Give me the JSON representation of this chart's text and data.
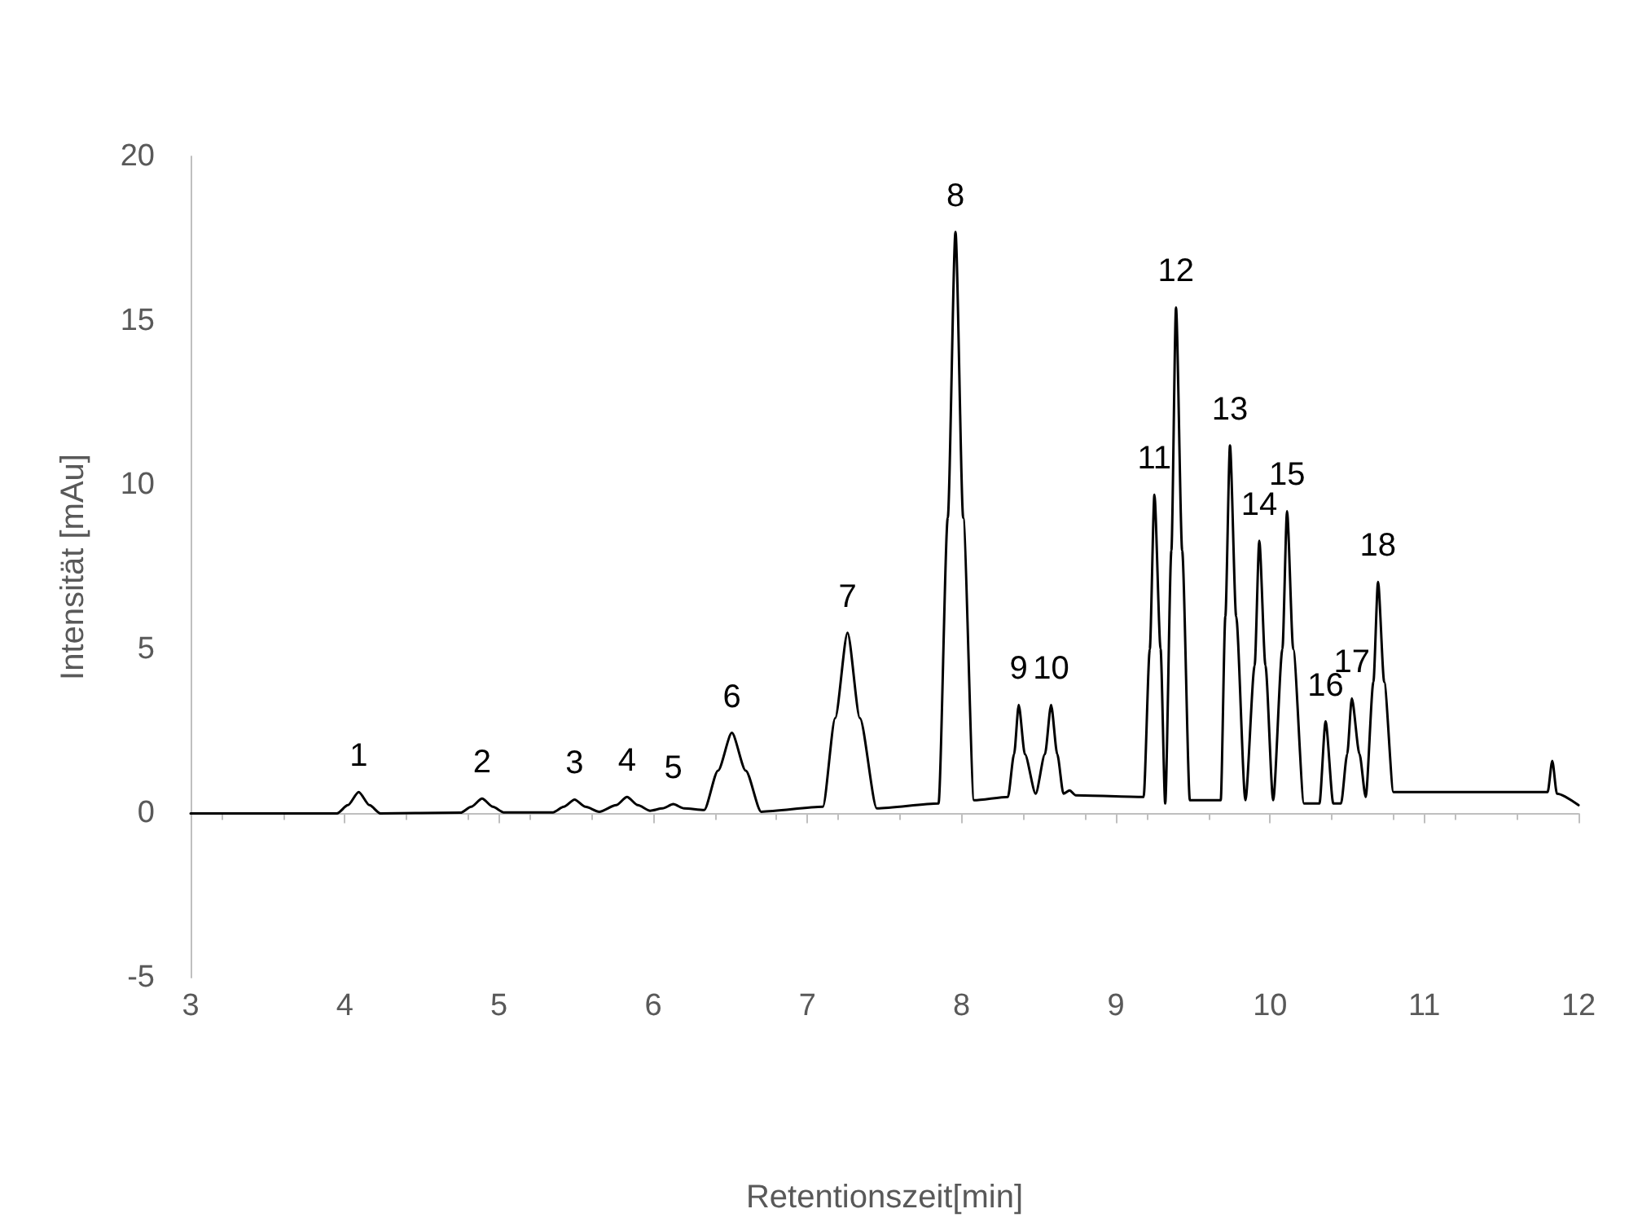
{
  "chart_data": {
    "type": "line",
    "xlabel": "Retentionszeit[min]",
    "ylabel": "Intensität [mAu]",
    "x": [
      3,
      3.95,
      4.02,
      4.09,
      4.16,
      4.23,
      4.75,
      4.82,
      4.89,
      4.96,
      5.03,
      5.35,
      5.42,
      5.49,
      5.56,
      5.65,
      5.76,
      5.83,
      5.9,
      5.98,
      6.06,
      6.13,
      6.2,
      6.33,
      6.42,
      6.51,
      6.6,
      6.7,
      7.1,
      7.18,
      7.26,
      7.34,
      7.45,
      7.85,
      7.91,
      7.96,
      8.01,
      8.08,
      8.3,
      8.34,
      8.37,
      8.41,
      8.48,
      8.54,
      8.58,
      8.62,
      8.66,
      8.7,
      8.74,
      9.18,
      9.22,
      9.25,
      9.29,
      9.32,
      9.36,
      9.39,
      9.43,
      9.48,
      9.68,
      9.71,
      9.74,
      9.78,
      9.84,
      9.9,
      9.93,
      9.97,
      10.02,
      10.08,
      10.11,
      10.15,
      10.22,
      10.32,
      10.36,
      10.41,
      10.46,
      10.5,
      10.53,
      10.58,
      10.62,
      10.67,
      10.7,
      10.74,
      10.8,
      11.8,
      11.83,
      11.86,
      12
    ],
    "values": [
      0,
      0,
      0.25,
      0.65,
      0.25,
      0,
      0.02,
      0.2,
      0.45,
      0.2,
      0.03,
      0.03,
      0.2,
      0.42,
      0.2,
      0.05,
      0.25,
      0.5,
      0.25,
      0.08,
      0.15,
      0.28,
      0.15,
      0.1,
      1.3,
      2.45,
      1.3,
      0.05,
      0.2,
      2.9,
      5.5,
      2.9,
      0.15,
      0.3,
      9,
      17.7,
      9,
      0.4,
      0.5,
      1.8,
      3.3,
      1.8,
      0.6,
      1.8,
      3.3,
      1.8,
      0.6,
      0.7,
      0.55,
      0.5,
      5,
      9.7,
      5,
      0.3,
      8,
      15.4,
      8,
      0.4,
      0.4,
      6,
      11.2,
      6,
      0.4,
      4.5,
      8.3,
      4.5,
      0.4,
      5,
      9.2,
      5,
      0.3,
      0.3,
      2.8,
      0.3,
      0.3,
      1.8,
      3.5,
      1.8,
      0.5,
      4,
      7.05,
      4,
      0.65,
      0.65,
      1.6,
      0.6,
      0.25
    ],
    "color": "#000000",
    "xlim": [
      3,
      12
    ],
    "xticks": [
      3,
      4,
      5,
      6,
      7,
      8,
      9,
      10,
      11,
      12
    ],
    "ylim": [
      -5,
      20
    ],
    "yticks": [
      -5,
      0,
      5,
      10,
      15,
      20
    ],
    "marker": "none",
    "line_style": "solid",
    "annotations": [
      {
        "text": "1",
        "x": 4.09,
        "y": 0.65
      },
      {
        "text": "2",
        "x": 4.89,
        "y": 0.45
      },
      {
        "text": "3",
        "x": 5.49,
        "y": 0.42
      },
      {
        "text": "4",
        "x": 5.83,
        "y": 0.5
      },
      {
        "text": "5",
        "x": 6.13,
        "y": 0.28
      },
      {
        "text": "6",
        "x": 6.51,
        "y": 2.45
      },
      {
        "text": "7",
        "x": 7.26,
        "y": 5.5
      },
      {
        "text": "8",
        "x": 7.96,
        "y": 17.7
      },
      {
        "text": "9",
        "x": 8.37,
        "y": 3.3
      },
      {
        "text": "10",
        "x": 8.58,
        "y": 3.3
      },
      {
        "text": "11",
        "x": 9.25,
        "y": 9.7
      },
      {
        "text": "12",
        "x": 9.39,
        "y": 15.4
      },
      {
        "text": "13",
        "x": 9.74,
        "y": 11.2
      },
      {
        "text": "14",
        "x": 9.93,
        "y": 8.3
      },
      {
        "text": "15",
        "x": 10.11,
        "y": 9.2
      },
      {
        "text": "16",
        "x": 10.36,
        "y": 2.8
      },
      {
        "text": "17",
        "x": 10.53,
        "y": 3.5
      },
      {
        "text": "18",
        "x": 10.7,
        "y": 7.05
      }
    ]
  }
}
